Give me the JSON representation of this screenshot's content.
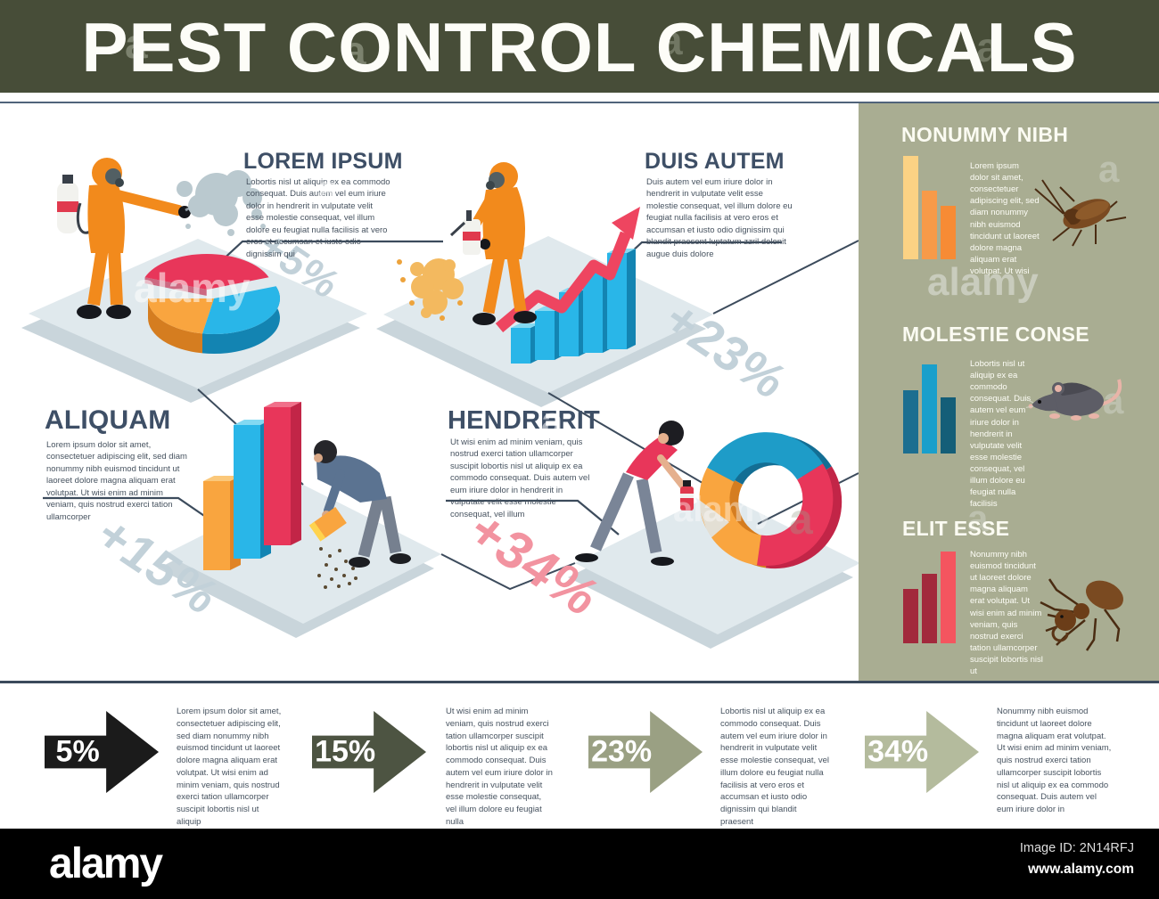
{
  "banner": {
    "title": "PEST CONTROL CHEMICALS"
  },
  "scenes": [
    {
      "title": "LOREM IPSUM",
      "body": "Lobortis nisl ut aliquip ex ea commodo consequat. Duis autem vel eum iriure dolor in hendrerit in vulputate velit esse molestie consequat, vel illum dolore eu feugiat nulla facilisis at vero eros et accumsan et iusto odio dignissim qui",
      "delta": "+5%",
      "delta_color": "#c2d1d9"
    },
    {
      "title": "DUIS AUTEM",
      "body": "Duis autem vel eum iriure dolor in hendrerit in vulputate velit esse molestie consequat, vel illum dolore eu feugiat nulla facilisis at vero eros et accumsan et iusto odio dignissim qui blandit praesent luptatum zzril delenit augue duis dolore",
      "delta": "+23%",
      "delta_color": "#c2d1d9"
    },
    {
      "title": "ALIQUAM",
      "body": "Lorem ipsum dolor sit amet, consectetuer adipiscing elit, sed diam nonummy nibh euismod tincidunt ut laoreet dolore magna aliquam erat volutpat. Ut wisi enim ad minim veniam, quis nostrud exerci tation ullamcorper",
      "delta": "+15%",
      "delta_color": "#c2d1d9"
    },
    {
      "title": "HENDRERIT",
      "body": "Ut wisi enim ad minim veniam, quis nostrud exerci tation ullamcorper suscipit lobortis nisl ut aliquip ex ea commodo consequat. Duis autem vel eum iriure dolor in hendrerit in vulputate velit esse molestie consequat, vel illum",
      "delta": "+34%",
      "delta_color": "#f293a0"
    }
  ],
  "sidebar": {
    "bg": "#a9ad92",
    "sections": [
      {
        "title": "NONUMMY NIBH",
        "pest": "cockroach",
        "body": "Lorem ipsum dolor sit amet, consectetuer adipiscing elit, sed diam nonummy nibh euismod tincidunt ut laoreet dolore magna aliquam erat volutpat. Ut wisi",
        "bars": {
          "heights": [
            116,
            77,
            60
          ],
          "colors": [
            "#fbd284",
            "#f79a49",
            "#f78b35"
          ]
        }
      },
      {
        "title": "MOLESTIE CONSE",
        "pest": "rat",
        "body": "Lobortis nisl ut aliquip ex ea commodo consequat. Duis autem vel eum iriure dolor in hendrerit in vulputate velit esse molestie consequat, vel illum dolore eu feugiat nulla facilisis",
        "bars": {
          "heights": [
            71,
            100,
            63
          ],
          "colors": [
            "#1c6e90",
            "#1a9fcb",
            "#145e78"
          ]
        }
      },
      {
        "title": "ELIT ESSE",
        "pest": "ant",
        "body": "Nonummy nibh euismod tincidunt ut laoreet dolore magna aliquam erat volutpat. Ut wisi enim ad minim veniam, quis nostrud exerci tation ullamcorper suscipit lobortis nisl ut",
        "bars": {
          "heights": [
            61,
            78,
            103
          ],
          "colors": [
            "#a2293c",
            "#a2293c",
            "#f4555f"
          ]
        }
      }
    ]
  },
  "stats": [
    {
      "value": "5%",
      "color": "#1b1b1b",
      "body": "Lorem ipsum dolor sit amet, consectetuer adipiscing elit, sed diam nonummy nibh euismod tincidunt ut laoreet dolore magna aliquam erat volutpat. Ut wisi enim ad minim veniam, quis nostrud exerci tation ullamcorper suscipit lobortis nisl ut aliquip"
    },
    {
      "value": "15%",
      "color": "#4d5442",
      "body": "Ut wisi enim ad minim veniam, quis nostrud exerci tation ullamcorper suscipit lobortis nisl ut aliquip ex ea commodo consequat. Duis autem vel eum iriure dolor in hendrerit in vulputate velit esse molestie consequat, vel illum dolore eu feugiat nulla"
    },
    {
      "value": "23%",
      "color": "#9aa083",
      "body": "Lobortis nisl ut aliquip ex ea commodo consequat. Duis autem vel eum iriure dolor in hendrerit in vulputate velit esse molestie consequat, vel illum dolore eu feugiat nulla facilisis at vero eros et accumsan et iusto odio dignissim qui blandit praesent"
    },
    {
      "value": "34%",
      "color": "#b4bb9d",
      "body": "Nonummy nibh euismod tincidunt ut laoreet dolore magna aliquam erat volutpat. Ut wisi enim ad minim veniam, quis nostrud exerci tation ullamcorper suscipit lobortis nisl ut aliquip ex ea commodo consequat. Duis autem vel eum iriure dolor in"
    }
  ],
  "footer": {
    "brand": "alamy",
    "image_id": "Image ID: 2N14RFJ",
    "site": "www.alamy.com"
  },
  "watermark": {
    "brand": "alamy",
    "tile": "a"
  }
}
